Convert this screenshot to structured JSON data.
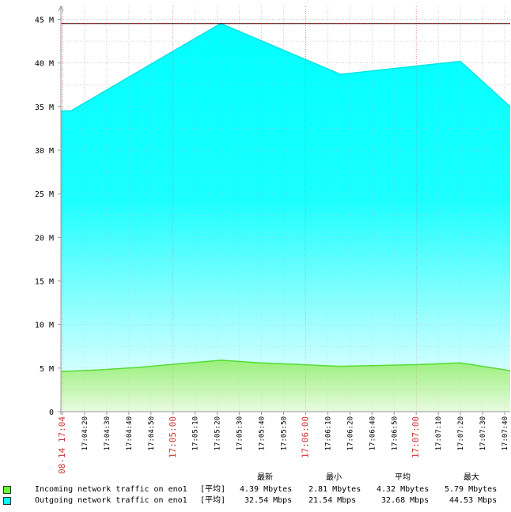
{
  "chart_data": {
    "type": "area",
    "y_ticks": [
      "0",
      "5 M",
      "10 M",
      "15 M",
      "20 M",
      "25 M",
      "30 M",
      "35 M",
      "40 M",
      "45 M"
    ],
    "y_tick_values": [
      0,
      5,
      10,
      15,
      20,
      25,
      30,
      35,
      40,
      45
    ],
    "ylim": [
      0,
      46.5
    ],
    "x_ticks": [
      {
        "label": "08-14 17:04",
        "major": true
      },
      {
        "label": "17:04:20",
        "major": false
      },
      {
        "label": "17:04:30",
        "major": false
      },
      {
        "label": "17:04:40",
        "major": false
      },
      {
        "label": "17:04:50",
        "major": false
      },
      {
        "label": "17:05:00",
        "major": true
      },
      {
        "label": "17:05:10",
        "major": false
      },
      {
        "label": "17:05:20",
        "major": false
      },
      {
        "label": "17:05:30",
        "major": false
      },
      {
        "label": "17:05:40",
        "major": false
      },
      {
        "label": "17:05:50",
        "major": false
      },
      {
        "label": "17:06:00",
        "major": true
      },
      {
        "label": "17:06:10",
        "major": false
      },
      {
        "label": "17:06:20",
        "major": false
      },
      {
        "label": "17:06:40",
        "major": false
      },
      {
        "label": "17:06:50",
        "major": false
      },
      {
        "label": "17:07:00",
        "major": true
      },
      {
        "label": "17:07:10",
        "major": false
      },
      {
        "label": "17:07:20",
        "major": false
      },
      {
        "label": "17:07:30",
        "major": false
      },
      {
        "label": "17:07:40",
        "major": false
      }
    ],
    "max_line_value": 44.53,
    "series": [
      {
        "name": "Outgoing network traffic on eno1",
        "color": "#00ffff",
        "x": [
          "17:04:00",
          "17:04:05",
          "17:05:20",
          "17:06:20",
          "17:07:20",
          "17:07:45"
        ],
        "values": [
          34.5,
          34.5,
          44.53,
          38.7,
          40.2,
          35.0
        ]
      },
      {
        "name": "Incoming network traffic on eno1",
        "color": "#66ff33",
        "x": [
          "17:04:00",
          "17:04:20",
          "17:04:40",
          "17:05:00",
          "17:05:20",
          "17:05:40",
          "17:06:00",
          "17:06:20",
          "17:06:40",
          "17:07:00",
          "17:07:20",
          "17:07:45"
        ],
        "values": [
          4.6,
          4.8,
          5.1,
          5.5,
          5.9,
          5.6,
          5.4,
          5.2,
          5.3,
          5.4,
          5.6,
          4.7
        ]
      }
    ]
  },
  "legend": {
    "headers": [
      "最新",
      "最小",
      "平均",
      "最大"
    ],
    "rows": [
      {
        "color": "#66ff33",
        "name": "Incoming network traffic on eno1",
        "tag": "[平均]",
        "latest": "4.39 Mbytes",
        "min": "2.81 Mbytes",
        "avg": "4.32 Mbytes",
        "max": "5.79 Mbytes"
      },
      {
        "color": "#00ffff",
        "name": "Outgoing network traffic on eno1",
        "tag": "[平均]",
        "latest": "32.54 Mbps",
        "min": "21.54 Mbps",
        "avg": "32.68 Mbps",
        "max": "44.53 Mbps"
      }
    ]
  }
}
